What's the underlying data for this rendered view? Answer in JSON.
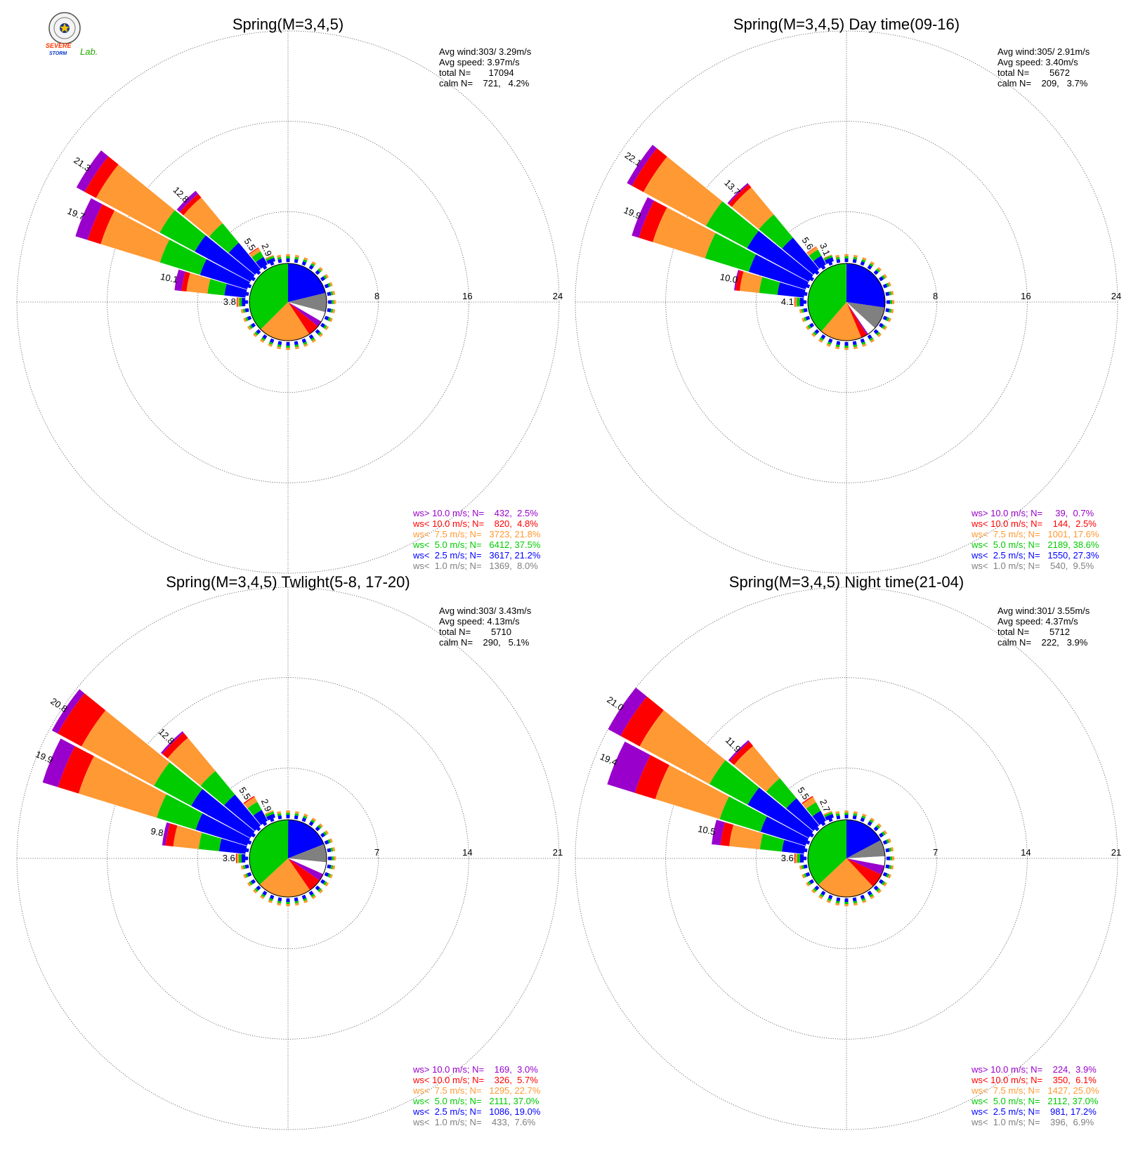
{
  "logo": {
    "lab_word": "Lab.",
    "name_line1": "SEVERE",
    "name_line2": "STORM"
  },
  "colors": {
    "ws_gt_10": "#9900cc",
    "ws_lt_10": "#ff0000",
    "ws_lt_7_5": "#ff9933",
    "ws_lt_5": "#00cc00",
    "ws_lt_2_5": "#0000ff",
    "ws_lt_1": "#808080",
    "pie_remainder": "#ffffff",
    "grid": "#555555"
  },
  "chart_data": [
    {
      "type": "windrose",
      "title": "Spring(M=3,4,5)",
      "stats": [
        "Avg wind:303/ 3.29m/s",
        "Avg speed: 3.97m/s",
        "total N=       17094",
        "calm N=    721,   4.2%"
      ],
      "radial_ticks": [
        "8",
        "16",
        "24"
      ],
      "rmax": 24,
      "petals": [
        {
          "dir_deg": 303.75,
          "label": "21.3",
          "segments": [
            6.8,
            4.3,
            7.8,
            1.4,
            1.0
          ]
        },
        {
          "dir_deg": 292.5,
          "label": "19.7",
          "segments": [
            5.4,
            4.6,
            6.8,
            1.5,
            1.4
          ]
        },
        {
          "dir_deg": 315.0,
          "label": "12.8",
          "segments": [
            4.3,
            3.2,
            4.2,
            0.6,
            0.5
          ]
        },
        {
          "dir_deg": 281.25,
          "label": "10.1",
          "segments": [
            3.0,
            2.4,
            3.0,
            0.7,
            1.0
          ]
        },
        {
          "dir_deg": 326.25,
          "label": "5.5",
          "segments": [
            2.4,
            1.8,
            1.1,
            0.2
          ]
        },
        {
          "dir_deg": 337.5,
          "label": "2.9",
          "segments": [
            1.5,
            0.9,
            0.5
          ]
        },
        {
          "dir_deg": 270.0,
          "label": "3.8",
          "segments": [
            1.5,
            1.2,
            0.8,
            0.3
          ]
        }
      ],
      "pie": [
        [
          "ws_lt_2_5",
          21.2
        ],
        [
          "ws_lt_1",
          8.0
        ],
        [
          "pie_remainder",
          4.2
        ],
        [
          "ws_gt_10",
          2.5
        ],
        [
          "ws_lt_10",
          4.8
        ],
        [
          "ws_lt_7_5",
          21.8
        ],
        [
          "ws_lt_5",
          37.5
        ]
      ],
      "legend": [
        {
          "text": "ws> 10.0 m/s; N=    432,  2.5%",
          "color_key": "ws_gt_10"
        },
        {
          "text": "ws< 10.0 m/s; N=    820,  4.8%",
          "color_key": "ws_lt_10"
        },
        {
          "text": "ws<  7.5 m/s; N=   3723, 21.8%",
          "color_key": "ws_lt_7_5"
        },
        {
          "text": "ws<  5.0 m/s; N=   6412, 37.5%",
          "color_key": "ws_lt_5"
        },
        {
          "text": "ws<  2.5 m/s; N=   3617, 21.2%",
          "color_key": "ws_lt_2_5"
        },
        {
          "text": "ws<  1.0 m/s; N=   1369,  8.0%",
          "color_key": "ws_lt_1"
        }
      ]
    },
    {
      "type": "windrose",
      "title": "Spring(M=3,4,5) Day time(09-16)",
      "stats": [
        "Avg wind:305/ 2.91m/s",
        "Avg speed: 3.40m/s",
        "total N=        5672",
        "calm N=    209,   3.7%"
      ],
      "radial_ticks": [
        "8",
        "16",
        "24"
      ],
      "rmax": 24,
      "petals": [
        {
          "dir_deg": 303.75,
          "label": "22.1",
          "segments": [
            7.5,
            5.0,
            7.6,
            1.4,
            0.6
          ]
        },
        {
          "dir_deg": 292.5,
          "label": "19.9",
          "segments": [
            6.5,
            5.0,
            6.0,
            1.6,
            0.8
          ]
        },
        {
          "dir_deg": 315.0,
          "label": "13.7",
          "segments": [
            5.0,
            3.7,
            4.3,
            0.5,
            0.2
          ]
        },
        {
          "dir_deg": 281.25,
          "label": "10.0",
          "segments": [
            3.8,
            2.6,
            2.8,
            0.6,
            0.2
          ]
        },
        {
          "dir_deg": 326.25,
          "label": "5.6",
          "segments": [
            2.7,
            1.9,
            0.9,
            0.1
          ]
        },
        {
          "dir_deg": 337.5,
          "label": "3.1",
          "segments": [
            1.8,
            0.9,
            0.4
          ]
        },
        {
          "dir_deg": 270.0,
          "label": "4.1",
          "segments": [
            1.7,
            1.4,
            0.8,
            0.2
          ]
        }
      ],
      "pie": [
        [
          "ws_lt_2_5",
          27.3
        ],
        [
          "ws_lt_1",
          9.5
        ],
        [
          "pie_remainder",
          3.7
        ],
        [
          "ws_gt_10",
          0.7
        ],
        [
          "ws_lt_10",
          2.5
        ],
        [
          "ws_lt_7_5",
          17.6
        ],
        [
          "ws_lt_5",
          38.6
        ]
      ],
      "legend": [
        {
          "text": "ws> 10.0 m/s; N=     39,  0.7%",
          "color_key": "ws_gt_10"
        },
        {
          "text": "ws< 10.0 m/s; N=    144,  2.5%",
          "color_key": "ws_lt_10"
        },
        {
          "text": "ws<  7.5 m/s; N=   1001, 17.6%",
          "color_key": "ws_lt_7_5"
        },
        {
          "text": "ws<  5.0 m/s; N=   2189, 38.6%",
          "color_key": "ws_lt_5"
        },
        {
          "text": "ws<  2.5 m/s; N=   1550, 27.3%",
          "color_key": "ws_lt_2_5"
        },
        {
          "text": "ws<  1.0 m/s; N=    540,  9.5%",
          "color_key": "ws_lt_1"
        }
      ]
    },
    {
      "type": "windrose",
      "title": "Spring(M=3,4,5) Twlight(5-8, 17-20)",
      "stats": [
        "Avg wind:303/ 3.43m/s",
        "Avg speed: 4.13m/s",
        "total N=        5710",
        "calm N=    290,   5.1%"
      ],
      "radial_ticks": [
        "7",
        "14",
        "21"
      ],
      "rmax": 21,
      "petals": [
        {
          "dir_deg": 303.75,
          "label": "20.8",
          "segments": [
            6.2,
            3.9,
            7.6,
            2.5,
            0.6
          ]
        },
        {
          "dir_deg": 292.5,
          "label": "19.9",
          "segments": [
            5.0,
            3.8,
            7.6,
            2.0,
            1.5
          ]
        },
        {
          "dir_deg": 315.0,
          "label": "12.8",
          "segments": [
            4.2,
            3.2,
            4.5,
            0.7,
            0.2
          ]
        },
        {
          "dir_deg": 281.25,
          "label": "9.8",
          "segments": [
            3.1,
            2.4,
            3.0,
            0.9,
            0.4
          ]
        },
        {
          "dir_deg": 326.25,
          "label": "5.5",
          "segments": [
            2.4,
            1.8,
            1.1,
            0.2
          ]
        },
        {
          "dir_deg": 337.5,
          "label": "2.9",
          "segments": [
            1.5,
            0.9,
            0.5
          ]
        },
        {
          "dir_deg": 270.0,
          "label": "3.6",
          "segments": [
            1.4,
            1.1,
            0.8,
            0.3
          ]
        }
      ],
      "pie": [
        [
          "ws_lt_2_5",
          19.0
        ],
        [
          "ws_lt_1",
          7.6
        ],
        [
          "pie_remainder",
          5.1
        ],
        [
          "ws_gt_10",
          3.0
        ],
        [
          "ws_lt_10",
          5.7
        ],
        [
          "ws_lt_7_5",
          22.7
        ],
        [
          "ws_lt_5",
          37.0
        ]
      ],
      "legend": [
        {
          "text": "ws> 10.0 m/s; N=    169,  3.0%",
          "color_key": "ws_gt_10"
        },
        {
          "text": "ws< 10.0 m/s; N=    326,  5.7%",
          "color_key": "ws_lt_10"
        },
        {
          "text": "ws<  7.5 m/s; N=   1295, 22.7%",
          "color_key": "ws_lt_7_5"
        },
        {
          "text": "ws<  5.0 m/s; N=   2111, 37.0%",
          "color_key": "ws_lt_5"
        },
        {
          "text": "ws<  2.5 m/s; N=   1086, 19.0%",
          "color_key": "ws_lt_2_5"
        },
        {
          "text": "ws<  1.0 m/s; N=    433,  7.6%",
          "color_key": "ws_lt_1"
        }
      ]
    },
    {
      "type": "windrose",
      "title": "Spring(M=3,4,5) Night time(21-04)",
      "stats": [
        "Avg wind:301/ 3.55m/s",
        "Avg speed: 4.37m/s",
        "total N=        5712",
        "calm N=    222,   3.9%"
      ],
      "radial_ticks": [
        "7",
        "14",
        "21"
      ],
      "rmax": 21,
      "petals": [
        {
          "dir_deg": 303.75,
          "label": "21.0",
          "segments": [
            6.4,
            4.0,
            7.3,
            2.0,
            1.3
          ]
        },
        {
          "dir_deg": 292.5,
          "label": "19.4",
          "segments": [
            4.4,
            4.0,
            6.3,
            2.0,
            2.7
          ]
        },
        {
          "dir_deg": 315.0,
          "label": "11.9",
          "segments": [
            3.8,
            2.8,
            4.5,
            0.6,
            0.2
          ]
        },
        {
          "dir_deg": 281.25,
          "label": "10.5",
          "segments": [
            2.5,
            2.5,
            3.5,
            1.0,
            1.0
          ]
        },
        {
          "dir_deg": 326.25,
          "label": "5.5",
          "segments": [
            2.2,
            1.9,
            1.2,
            0.2
          ]
        },
        {
          "dir_deg": 337.5,
          "label": "2.7",
          "segments": [
            1.4,
            0.8,
            0.5
          ]
        },
        {
          "dir_deg": 270.0,
          "label": "3.6",
          "segments": [
            1.4,
            1.1,
            0.8,
            0.3
          ]
        }
      ],
      "pie": [
        [
          "ws_lt_2_5",
          17.2
        ],
        [
          "ws_lt_1",
          6.9
        ],
        [
          "pie_remainder",
          3.9
        ],
        [
          "ws_gt_10",
          3.9
        ],
        [
          "ws_lt_10",
          6.1
        ],
        [
          "ws_lt_7_5",
          25.0
        ],
        [
          "ws_lt_5",
          37.0
        ]
      ],
      "legend": [
        {
          "text": "ws> 10.0 m/s; N=    224,  3.9%",
          "color_key": "ws_gt_10"
        },
        {
          "text": "ws< 10.0 m/s; N=    350,  6.1%",
          "color_key": "ws_lt_10"
        },
        {
          "text": "ws<  7.5 m/s; N=   1427, 25.0%",
          "color_key": "ws_lt_7_5"
        },
        {
          "text": "ws<  5.0 m/s; N=   2112, 37.0%",
          "color_key": "ws_lt_5"
        },
        {
          "text": "ws<  2.5 m/s; N=    981, 17.2%",
          "color_key": "ws_lt_2_5"
        },
        {
          "text": "ws<  1.0 m/s; N=    396,  6.9%",
          "color_key": "ws_lt_1"
        }
      ]
    }
  ]
}
